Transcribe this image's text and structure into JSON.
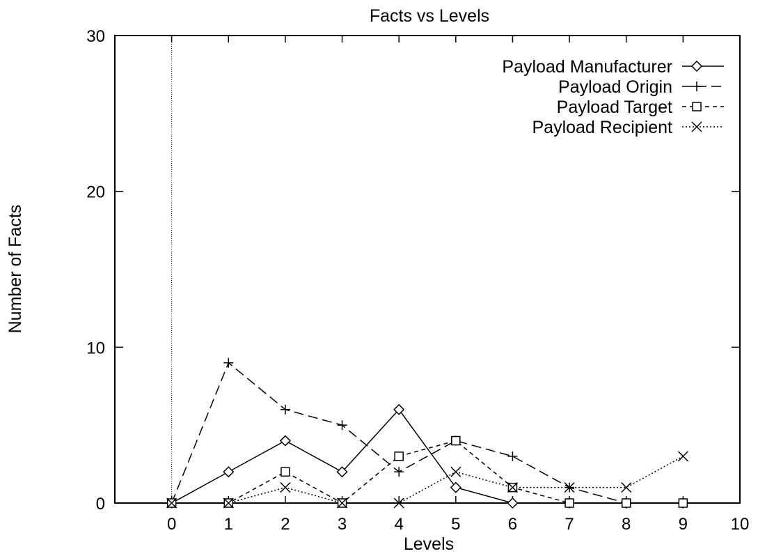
{
  "chart_data": {
    "type": "line",
    "title": "Facts vs Levels",
    "xlabel": "Levels",
    "ylabel": "Number of Facts",
    "xlim": [
      -1,
      10
    ],
    "ylim": [
      0,
      30
    ],
    "x_ticks": [
      0,
      1,
      2,
      3,
      4,
      5,
      6,
      7,
      8,
      9,
      10
    ],
    "y_ticks": [
      0,
      10,
      20,
      30
    ],
    "grid": false,
    "zero_axis_x": 0,
    "legend_position": "top-right",
    "x": [
      0,
      1,
      2,
      3,
      4,
      5,
      6,
      7,
      8,
      9
    ],
    "series": [
      {
        "name": "Payload Manufacturer",
        "marker": "diamond",
        "dash": "solid",
        "values": [
          0,
          2,
          4,
          2,
          6,
          1,
          0,
          0,
          0,
          0
        ]
      },
      {
        "name": "Payload Origin",
        "marker": "plus",
        "dash": "long-dash",
        "values": [
          0,
          9,
          6,
          5,
          2,
          4,
          3,
          1,
          0,
          0
        ]
      },
      {
        "name": "Payload Target",
        "marker": "square",
        "dash": "short-dash",
        "values": [
          0,
          0,
          2,
          0,
          3,
          4,
          1,
          0,
          0,
          0
        ]
      },
      {
        "name": "Payload Recipient",
        "marker": "cross",
        "dash": "dotted",
        "values": [
          0,
          0,
          1,
          0,
          0,
          2,
          1,
          1,
          1,
          3
        ]
      }
    ]
  }
}
